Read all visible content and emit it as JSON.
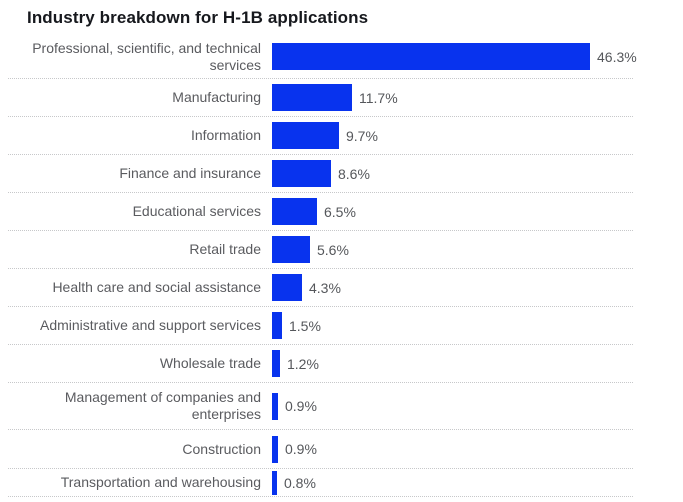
{
  "chart_data": {
    "type": "bar",
    "orientation": "horizontal",
    "title": "Industry breakdown for H-1B applications",
    "unit": "%",
    "xlim": [
      0,
      50
    ],
    "bar_color": "#0833ee",
    "grid": "dotted-row-separators",
    "legend": "none",
    "categories": [
      "Professional, scientific, and technical services",
      "Manufacturing",
      "Information",
      "Finance and insurance",
      "Educational services",
      "Retail trade",
      "Health care and social assistance",
      "Administrative and support services",
      "Wholesale trade",
      "Management of companies and enterprises",
      "Construction",
      "Transportation and warehousing"
    ],
    "labels_display": [
      "Professional, scientific, and technical\nservices",
      "Manufacturing",
      "Information",
      "Finance and insurance",
      "Educational services",
      "Retail trade",
      "Health care and social assistance",
      "Administrative and support services",
      "Wholesale trade",
      "Management of companies and\nenterprises",
      "Construction",
      "Transportation and warehousing"
    ],
    "values": [
      46.3,
      11.7,
      9.7,
      8.6,
      6.5,
      5.6,
      4.3,
      1.5,
      1.2,
      0.9,
      0.9,
      0.8
    ],
    "value_labels": [
      "46.3%",
      "11.7%",
      "9.7%",
      "8.6%",
      "6.5%",
      "5.6%",
      "4.3%",
      "1.5%",
      "1.2%",
      "0.9%",
      "0.9%",
      "0.8%"
    ]
  }
}
